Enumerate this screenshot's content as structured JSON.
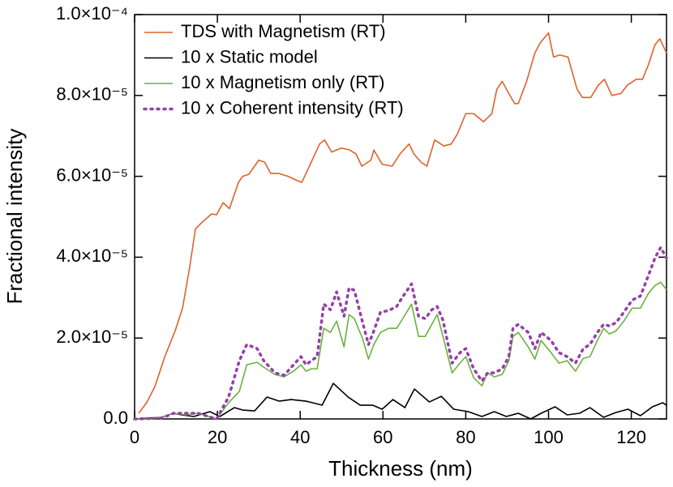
{
  "chart_data": {
    "type": "line",
    "xlabel": "Thickness (nm)",
    "ylabel": "Fractional intensity",
    "xlim": [
      0,
      128.5
    ],
    "xticks": [
      0,
      20,
      40,
      60,
      80,
      100,
      120
    ],
    "ylim": [
      0,
      0.0001
    ],
    "yticks": [
      {
        "value": 0,
        "label": "0.0"
      },
      {
        "value": 2e-05,
        "label": "2.0×10⁻⁵"
      },
      {
        "value": 4e-05,
        "label": "4.0×10⁻⁵"
      },
      {
        "value": 6e-05,
        "label": "6.0×10⁻⁵"
      },
      {
        "value": 8e-05,
        "label": "8.0×10⁻⁵"
      },
      {
        "value": 0.0001,
        "label": "1.0×10⁻⁴"
      }
    ],
    "legend": "upper left",
    "series": [
      {
        "name": "TDS with Magnetism (RT)",
        "color": "#e0622a",
        "linestyle": "solid",
        "x": [
          1.0,
          2.9,
          4.9,
          7.3,
          9.8,
          11.6,
          13.3,
          14.7,
          16.7,
          18.6,
          19.8,
          21.4,
          22.9,
          25.1,
          26.1,
          27.6,
          30.0,
          31.4,
          32.9,
          34.9,
          37.1,
          39.2,
          40.4,
          44.7,
          45.9,
          47.6,
          50.0,
          52.0,
          53.5,
          54.9,
          57.1,
          57.8,
          59.8,
          62.2,
          64.1,
          66.3,
          67.5,
          69.2,
          70.6,
          72.5,
          74.7,
          76.5,
          78.0,
          80.0,
          81.9,
          84.3,
          86.3,
          87.5,
          88.8,
          90.4,
          91.8,
          92.7,
          94.7,
          96.7,
          98.0,
          100.0,
          101.2,
          102.7,
          104.7,
          106.9,
          108.2,
          110.2,
          112.0,
          113.5,
          115.3,
          117.5,
          119.0,
          121.2,
          122.7,
          124.1,
          125.7,
          126.9,
          128.5
        ],
        "values": [
          1.4e-06,
          4e-06,
          8e-06,
          1.54e-05,
          2.18e-05,
          2.75e-05,
          3.75e-05,
          4.7e-05,
          4.9e-05,
          5.07e-05,
          5.05e-05,
          5.35e-05,
          5.2e-05,
          5.85e-05,
          6e-05,
          6.05e-05,
          6.4e-05,
          6.35e-05,
          6.07e-05,
          6.07e-05,
          6e-05,
          5.9e-05,
          5.85e-05,
          6.8e-05,
          6.9e-05,
          6.6e-05,
          6.7e-05,
          6.65e-05,
          6.55e-05,
          6.25e-05,
          6.4e-05,
          6.65e-05,
          6.3e-05,
          6.25e-05,
          6.55e-05,
          6.8e-05,
          6.55e-05,
          6.35e-05,
          6.25e-05,
          6.9e-05,
          6.75e-05,
          6.8e-05,
          7.05e-05,
          7.55e-05,
          7.55e-05,
          7.35e-05,
          7.55e-05,
          8.15e-05,
          8.35e-05,
          8.05e-05,
          7.8e-05,
          7.8e-05,
          8.35e-05,
          9.05e-05,
          9.3e-05,
          9.55e-05,
          8.95e-05,
          9e-05,
          8.95e-05,
          8.15e-05,
          7.95e-05,
          7.95e-05,
          8.25e-05,
          8.4e-05,
          8e-05,
          8.05e-05,
          8.25e-05,
          8.4e-05,
          8.4e-05,
          8.75e-05,
          9.25e-05,
          9.4e-05,
          9.05e-05
        ]
      },
      {
        "name": "10 x Static model",
        "color": "#000000",
        "linestyle": "solid",
        "x": [
          0,
          6.5,
          9.4,
          11.4,
          14.3,
          18.2,
          20.6,
          24.1,
          26.1,
          29.0,
          32.0,
          34.9,
          37.8,
          41.4,
          45.3,
          48.0,
          51.6,
          54.5,
          57.5,
          59.8,
          62.4,
          65.3,
          67.6,
          71.2,
          74.1,
          77.1,
          80.6,
          83.9,
          86.9,
          89.8,
          92.7,
          95.7,
          98.2,
          101.6,
          104.5,
          107.5,
          110.0,
          113.3,
          116.3,
          119.2,
          122.2,
          125.1,
          127.6,
          128.5
        ],
        "values": [
          0,
          4e-07,
          1.4e-06,
          1e-06,
          6e-07,
          1.8e-06,
          6e-07,
          2.8e-06,
          2.2e-06,
          2e-06,
          5.4e-06,
          4.4e-06,
          4.8e-06,
          4.4e-06,
          3.4e-06,
          8.8e-06,
          5.4e-06,
          3.4e-06,
          3.4e-06,
          2.4e-06,
          4.8e-06,
          2.8e-06,
          7.4e-06,
          4.2e-06,
          5.6e-06,
          2.4e-06,
          1.8e-06,
          6e-07,
          1.8e-06,
          6e-07,
          1.4e-06,
          0,
          1.4e-06,
          3e-06,
          1e-06,
          1.4e-06,
          2.8e-06,
          4e-07,
          1.6e-06,
          2.4e-06,
          8e-07,
          3e-06,
          4e-06,
          3.4e-06
        ]
      },
      {
        "name": "10 x Magnetism only (RT)",
        "color": "#6ab23e",
        "linestyle": "solid",
        "x": [
          0,
          3.5,
          6.5,
          9.4,
          12.4,
          15.3,
          19.8,
          22.7,
          25.3,
          27.1,
          29.6,
          31.2,
          33.9,
          36.1,
          38.4,
          40.2,
          41.4,
          42.7,
          44.1,
          45.7,
          47.3,
          48.8,
          50.6,
          51.8,
          53.1,
          55.1,
          56.5,
          57.8,
          59.4,
          61.4,
          63.3,
          64.9,
          66.9,
          68.6,
          70.2,
          71.8,
          73.1,
          74.5,
          76.7,
          78.6,
          80.0,
          81.9,
          83.9,
          85.3,
          86.9,
          88.8,
          90.4,
          91.4,
          92.7,
          95.1,
          96.7,
          98.2,
          100.6,
          102.5,
          104.5,
          106.5,
          108.4,
          110.0,
          111.8,
          113.3,
          114.7,
          116.3,
          118.2,
          120.2,
          122.2,
          124.1,
          125.7,
          127.1,
          128.5
        ],
        "values": [
          0,
          0,
          4e-07,
          1.4e-06,
          1e-06,
          1.4e-06,
          0,
          4e-06,
          6.8e-06,
          1.34e-05,
          1.4e-05,
          1.28e-05,
          1.1e-05,
          1.04e-05,
          1.18e-05,
          1.34e-05,
          1.18e-05,
          1.24e-05,
          1.24e-05,
          2.24e-05,
          2.14e-05,
          2.42e-05,
          1.78e-05,
          2.58e-05,
          2.48e-05,
          1.98e-05,
          1.48e-05,
          1.84e-05,
          2.14e-05,
          2.24e-05,
          2.24e-05,
          2.5e-05,
          2.84e-05,
          2.04e-05,
          2.04e-05,
          2.34e-05,
          2.58e-05,
          2.04e-05,
          1.14e-05,
          1.38e-05,
          1.54e-05,
          1.02e-05,
          8.2e-06,
          1.14e-05,
          1.04e-05,
          1.1e-05,
          1.44e-05,
          2.04e-05,
          2.14e-05,
          1.78e-05,
          1.48e-05,
          1.94e-05,
          1.64e-05,
          1.38e-05,
          1.44e-05,
          1.18e-05,
          1.5e-05,
          1.54e-05,
          1.94e-05,
          2.24e-05,
          2.1e-05,
          2.18e-05,
          2.42e-05,
          2.74e-05,
          2.74e-05,
          3.1e-05,
          3.3e-05,
          3.38e-05,
          3.2e-05
        ]
      },
      {
        "name": "10 x Coherent intensity (RT)",
        "color": "#9440a8",
        "linestyle": "dotted",
        "x": [
          0,
          3.5,
          6.5,
          9.4,
          12.4,
          15.3,
          19.8,
          22.7,
          25.3,
          27.1,
          29.6,
          31.2,
          33.9,
          36.1,
          38.4,
          40.2,
          41.4,
          42.7,
          44.1,
          45.7,
          47.3,
          48.8,
          50.6,
          51.8,
          53.1,
          55.1,
          56.5,
          57.8,
          59.4,
          61.4,
          63.3,
          64.9,
          66.9,
          68.6,
          70.2,
          71.8,
          73.1,
          74.5,
          76.7,
          78.6,
          80.0,
          81.9,
          83.9,
          85.3,
          86.9,
          88.8,
          90.4,
          91.4,
          92.7,
          95.1,
          96.7,
          98.2,
          100.6,
          102.5,
          104.5,
          106.5,
          108.4,
          110.0,
          111.8,
          113.3,
          114.7,
          116.3,
          118.2,
          120.2,
          122.2,
          124.1,
          125.7,
          127.1,
          128.5
        ],
        "values": [
          0,
          1e-07,
          2e-07,
          1.4e-06,
          1.4e-06,
          1.4e-06,
          0,
          5.4e-06,
          1.44e-05,
          1.84e-05,
          1.74e-05,
          1.44e-05,
          1.14e-05,
          1.08e-05,
          1.34e-05,
          1.54e-05,
          1.34e-05,
          1.44e-05,
          1.54e-05,
          2.84e-05,
          2.7e-05,
          3.14e-05,
          2.54e-05,
          3.24e-05,
          3.18e-05,
          2.38e-05,
          1.84e-05,
          2.18e-05,
          2.64e-05,
          2.68e-05,
          2.78e-05,
          3.04e-05,
          3.34e-05,
          2.54e-05,
          2.48e-05,
          2.7e-05,
          2.78e-05,
          2.44e-05,
          1.38e-05,
          1.64e-05,
          1.74e-05,
          1.24e-05,
          9.4e-06,
          1.14e-05,
          1.14e-05,
          1.24e-05,
          1.54e-05,
          2.24e-05,
          2.34e-05,
          2.14e-05,
          1.74e-05,
          2.14e-05,
          1.94e-05,
          1.64e-05,
          1.54e-05,
          1.38e-05,
          1.74e-05,
          1.84e-05,
          2.14e-05,
          2.34e-05,
          2.3e-05,
          2.38e-05,
          2.64e-05,
          2.94e-05,
          3.04e-05,
          3.54e-05,
          3.98e-05,
          4.24e-05,
          3.98e-05
        ]
      }
    ]
  }
}
